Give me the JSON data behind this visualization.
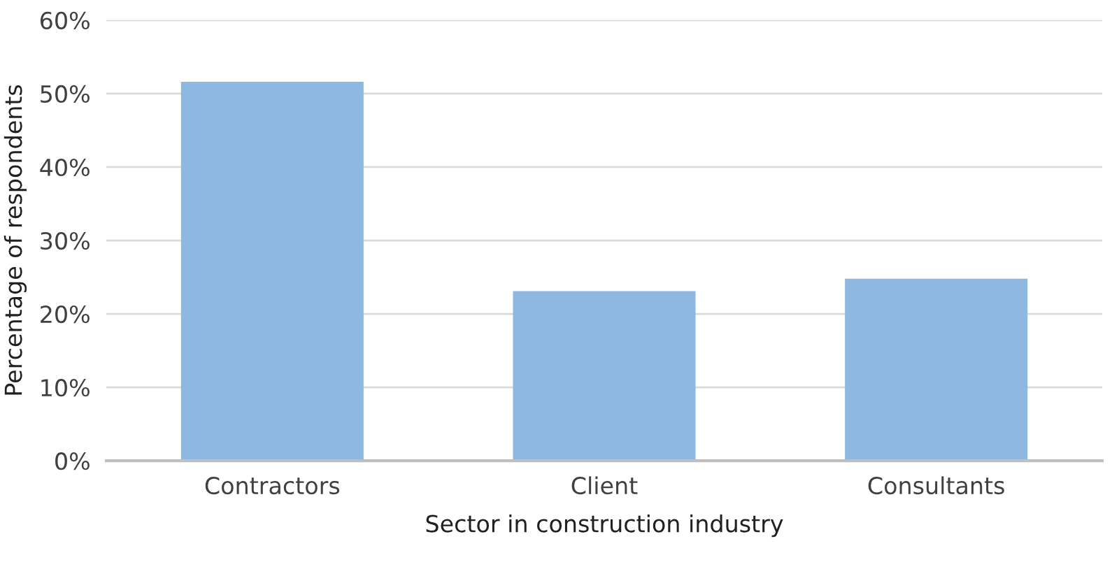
{
  "chart_data": {
    "type": "bar",
    "xlabel": "Sector in construction industry",
    "ylabel": "Percentage of respondents",
    "categories": [
      "Contractors",
      "Client",
      "Consultants"
    ],
    "values": [
      51.6,
      23.1,
      24.8
    ],
    "color": "#8cb8e2",
    "ylim": [
      0,
      60
    ],
    "yticks": [
      {
        "value": 0,
        "label": "0%"
      },
      {
        "value": 10,
        "label": "10%"
      },
      {
        "value": 20,
        "label": "20%"
      },
      {
        "value": 30,
        "label": "30%"
      },
      {
        "value": 40,
        "label": "40%"
      },
      {
        "value": 50,
        "label": "50%"
      },
      {
        "value": 60,
        "label": "60%"
      }
    ],
    "grid": "y",
    "legend": false
  }
}
